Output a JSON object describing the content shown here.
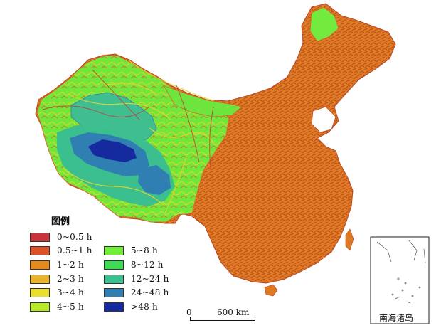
{
  "legend": {
    "title": "图例",
    "items": [
      {
        "label": "0~0.5 h",
        "color": "#c8343a"
      },
      {
        "label": "0.5~1 h",
        "color": "#d9542a"
      },
      {
        "label": "1~2 h",
        "color": "#e8891e"
      },
      {
        "label": "2~3 h",
        "color": "#e9b327"
      },
      {
        "label": "3~4 h",
        "color": "#eadf2e"
      },
      {
        "label": "4~5 h",
        "color": "#b8ea2a"
      },
      {
        "label": "5~8 h",
        "color": "#72ee3c"
      },
      {
        "label": "8~12 h",
        "color": "#3edb56"
      },
      {
        "label": "12~24 h",
        "color": "#3cbf8e"
      },
      {
        "label": "24~48 h",
        "color": "#2f7fb2"
      },
      {
        "label": ">48 h",
        "color": "#152a9e"
      }
    ]
  },
  "scale_bar": {
    "zero": "0",
    "distance": "600 km"
  },
  "inset": {
    "label": "南海诸岛"
  }
}
